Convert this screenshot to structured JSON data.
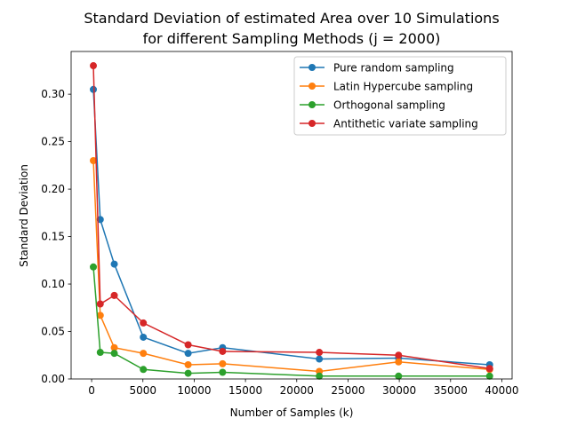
{
  "chart_data": {
    "type": "line",
    "title_line1": "Standard Deviation of estimated Area over 10 Simulations",
    "title_line2": "for different Sampling Methods (j = 2000)",
    "xlabel": "Number of Samples (k)",
    "ylabel": "Standard Deviation",
    "xlim": [
      -2000,
      41000
    ],
    "ylim": [
      0,
      0.345
    ],
    "xticks": [
      0,
      5000,
      10000,
      15000,
      20000,
      25000,
      30000,
      35000,
      40000
    ],
    "yticks": [
      0.0,
      0.05,
      0.1,
      0.15,
      0.2,
      0.25,
      0.3
    ],
    "ytick_labels": [
      "0.00",
      "0.05",
      "0.10",
      "0.15",
      "0.20",
      "0.25",
      "0.30"
    ],
    "legend_position": "top-right",
    "grid": false,
    "x": [
      169,
      841,
      2209,
      5041,
      9409,
      12769,
      22201,
      29929,
      38809
    ],
    "series": [
      {
        "name": "Pure random sampling",
        "color": "#1f77b4",
        "values": [
          0.305,
          0.168,
          0.121,
          0.044,
          0.027,
          0.033,
          0.021,
          0.022,
          0.015
        ]
      },
      {
        "name": "Latin Hypercube sampling",
        "color": "#ff7f0e",
        "values": [
          0.23,
          0.067,
          0.033,
          0.027,
          0.015,
          0.016,
          0.008,
          0.018,
          0.01
        ]
      },
      {
        "name": "Orthogonal sampling",
        "color": "#2ca02c",
        "values": [
          0.118,
          0.028,
          0.027,
          0.01,
          0.006,
          0.007,
          0.003,
          0.003,
          0.003
        ]
      },
      {
        "name": "Antithetic variate sampling",
        "color": "#d62728",
        "values": [
          0.33,
          0.079,
          0.088,
          0.059,
          0.036,
          0.029,
          0.028,
          0.025,
          0.011
        ]
      }
    ]
  }
}
